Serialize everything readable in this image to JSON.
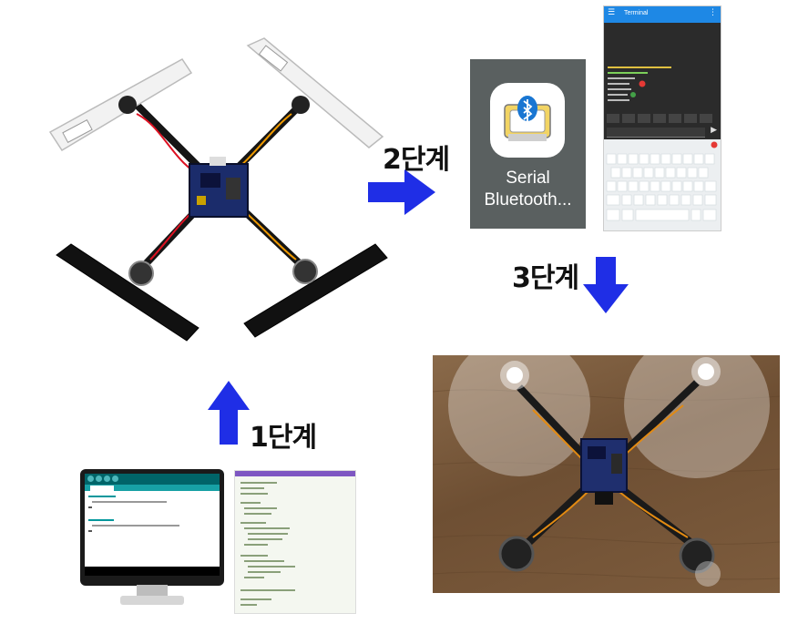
{
  "steps": {
    "step1": "1단계",
    "step2": "2단계",
    "step3": "3단계"
  },
  "app_icon": {
    "label_line1": "Serial",
    "label_line2": "Bluetooth..."
  },
  "terminal": {
    "title": "Terminal"
  },
  "colors": {
    "arrow": "#1f2ee6",
    "terminal_header": "#1e88e5",
    "terminal_bg": "#2b2b2b",
    "keyboard_bg": "#eceff1",
    "icon_bg": "#5a6060",
    "photo_wood": "#7a5a3a"
  }
}
